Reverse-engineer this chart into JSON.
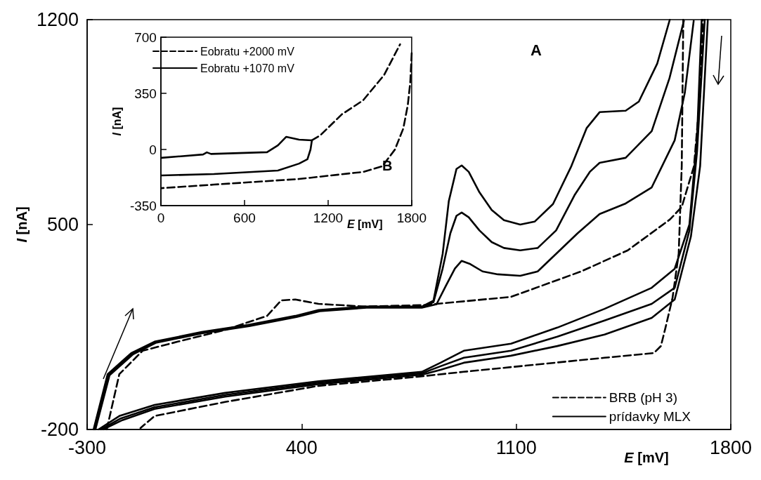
{
  "chart_data": [
    {
      "type": "line",
      "xlabel": "E [mV]",
      "ylabel": "I [nA]",
      "xlim": [
        -300,
        1800
      ],
      "ylim": [
        -200,
        1200
      ],
      "xticks": [
        -300,
        400,
        1100,
        1800
      ],
      "yticks": [
        -200,
        500,
        1200
      ],
      "legend": "bottom right",
      "marker": "none",
      "annotations": [
        "A"
      ],
      "series": [
        {
          "name": "BRB (pH 3)",
          "color": "#000000",
          "line_style": "dashed",
          "x": [
            -236,
            -195,
            -119,
            -4,
            150,
            287,
            333,
            379,
            455,
            608,
            800,
            1083,
            1312,
            1464,
            1601,
            1640,
            1680,
            1700,
            1709
          ],
          "values": [
            -200,
            -11,
            69,
            100,
            140,
            188,
            241,
            244,
            229,
            220,
            225,
            253,
            340,
            412,
            517,
            560,
            700,
            950,
            1200
          ]
        },
        {
          "color": "#000000",
          "line_style": "dashed",
          "x": [
            1645,
            1640,
            1630,
            1610,
            1587,
            1572,
            1549,
            1388,
            1159,
            929,
            776,
            455,
            150,
            -80,
            -126
          ],
          "values": [
            1200,
            700,
            400,
            250,
            148,
            85,
            61,
            45,
            21,
            -3,
            -20,
            -51,
            -106,
            -154,
            -195
          ]
        },
        {
          "name": "prídavky MLX",
          "color": "#000000",
          "line_style": "solid",
          "x": [
            -279,
            -233,
            -156,
            -80,
            74,
            225,
            379,
            455,
            608,
            792,
            830,
            860,
            880,
            905,
            922,
            945,
            980,
            1020,
            1060,
            1113,
            1160,
            1220,
            1280,
            1330,
            1372,
            1457,
            1500,
            1560,
            1601
          ],
          "values": [
            -200,
            -11,
            61,
            100,
            133,
            157,
            188,
            208,
            220,
            220,
            240,
            400,
            580,
            690,
            702,
            680,
            610,
            550,
            515,
            500,
            510,
            570,
            700,
            830,
            884,
            889,
            920,
            1050,
            1200
          ]
        },
        {
          "color": "#000000",
          "line_style": "solid",
          "x": [
            1705,
            1690,
            1665,
            1617,
            1542,
            1388,
            1234,
            1083,
            929,
            853,
            792,
            455,
            150,
            -80,
            -195,
            -263
          ],
          "values": [
            1200,
            800,
            500,
            349,
            284,
            212,
            148,
            93,
            69,
            28,
            -3,
            -35,
            -75,
            -116,
            -154,
            -200
          ]
        },
        {
          "color": "#000000",
          "line_style": "solid",
          "x": [
            -276,
            -230,
            -153,
            -78,
            76,
            227,
            381,
            457,
            610,
            792,
            830,
            860,
            885,
            905,
            922,
            945,
            980,
            1020,
            1060,
            1113,
            1170,
            1230,
            1290,
            1340,
            1372,
            1457,
            1542,
            1600,
            1647
          ],
          "values": [
            -200,
            -13,
            59,
            98,
            131,
            155,
            186,
            206,
            218,
            218,
            235,
            350,
            470,
            530,
            541,
            525,
            480,
            440,
            420,
            412,
            420,
            480,
            600,
            680,
            711,
            728,
            819,
            1000,
            1196
          ]
        },
        {
          "color": "#000000",
          "line_style": "solid",
          "x": [
            1715,
            1690,
            1665,
            1617,
            1542,
            1388,
            1234,
            1083,
            929,
            853,
            792,
            455,
            150,
            -80,
            -190,
            -255
          ],
          "values": [
            1200,
            750,
            480,
            284,
            229,
            172,
            117,
            69,
            45,
            16,
            -8,
            -40,
            -82,
            -124,
            -162,
            -200
          ]
        },
        {
          "color": "#000000",
          "line_style": "solid",
          "x": [
            -273,
            -227,
            -150,
            -76,
            78,
            229,
            383,
            459,
            612,
            792,
            840,
            870,
            900,
            922,
            950,
            990,
            1040,
            1113,
            1170,
            1230,
            1300,
            1372,
            1457,
            1542,
            1617,
            1650,
            1679
          ],
          "values": [
            -200,
            -15,
            57,
            96,
            129,
            153,
            184,
            204,
            216,
            216,
            228,
            290,
            350,
            376,
            365,
            340,
            330,
            325,
            340,
            400,
            470,
            536,
            572,
            627,
            788,
            950,
            1196
          ]
        },
        {
          "color": "#000000",
          "line_style": "solid",
          "x": [
            1725,
            1700,
            1670,
            1617,
            1542,
            1388,
            1234,
            1083,
            929,
            853,
            792,
            455,
            150,
            -80,
            -185,
            -248
          ],
          "values": [
            1200,
            700,
            460,
            244,
            181,
            124,
            85,
            52,
            28,
            4,
            -13,
            -45,
            -88,
            -130,
            -168,
            -200
          ]
        }
      ]
    },
    {
      "type": "line",
      "xlabel": "E [mV]",
      "ylabel": "I [nA]",
      "xlim": [
        0,
        1800
      ],
      "ylim": [
        -350,
        700
      ],
      "xticks": [
        0,
        600,
        1200,
        1800
      ],
      "yticks": [
        -350,
        0,
        350,
        700
      ],
      "legend": "top left",
      "marker": "none",
      "annotations": [
        "B"
      ],
      "series": [
        {
          "name": "Eobratu +2000 mV",
          "color": "#000000",
          "line_style": "dashed",
          "x": [
            1084,
            1143,
            1299,
            1451,
            1602,
            1717,
            null,
            1800,
            1790,
            1772,
            1740,
            1680,
            1589,
            1451,
            992,
            381,
            5
          ],
          "values": [
            57,
            87,
            219,
            306,
            464,
            656,
            null,
            600,
            420,
            276,
            131,
            0,
            -105,
            -140,
            -184,
            -219,
            -241
          ]
        },
        {
          "name": "Eobratu +1070 mV",
          "color": "#000000",
          "line_style": "solid",
          "x": [
            5,
            303,
            330,
            360,
            762,
            840,
            900,
            992,
            1084,
            1074,
            1052,
            992,
            840,
            381,
            5
          ],
          "values": [
            -52,
            -31,
            -18,
            -28,
            -17,
            26,
            79,
            61,
            57,
            0,
            -61,
            -88,
            -131,
            -153,
            -162
          ]
        }
      ]
    }
  ]
}
